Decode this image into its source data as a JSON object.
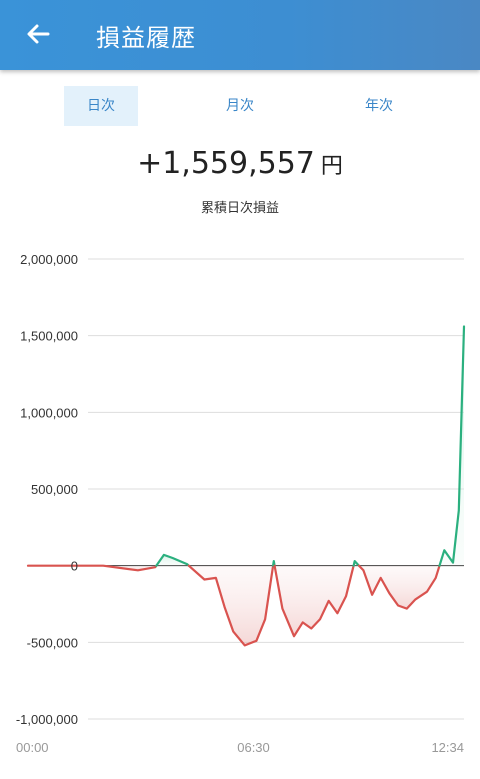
{
  "header": {
    "title": "損益履歴",
    "back_icon": "arrow-left-icon",
    "background": "#3d8ed2"
  },
  "tabs": [
    {
      "label": "日次",
      "active": true
    },
    {
      "label": "月次",
      "active": false
    },
    {
      "label": "年次",
      "active": false
    }
  ],
  "summary": {
    "value": "+1,559,557",
    "unit": "円",
    "caption": "累積日次損益"
  },
  "colors": {
    "positive": "#2bb07f",
    "negative": "#d9534f",
    "zero_line": "#333333",
    "grid": "#dddddd",
    "tab_active_bg": "#e3f1fb",
    "tab_text": "#3a86c8"
  },
  "chart_data": {
    "type": "line",
    "title": "",
    "xlabel": "",
    "ylabel": "",
    "ylim": [
      -1000000,
      2000000
    ],
    "y_ticks": [
      {
        "value": 2000000,
        "label": "2,000,000"
      },
      {
        "value": 1500000,
        "label": "1,500,000"
      },
      {
        "value": 1000000,
        "label": "1,000,000"
      },
      {
        "value": 500000,
        "label": "500,000"
      },
      {
        "value": 0,
        "label": "0"
      },
      {
        "value": -500000,
        "label": "-500,000"
      },
      {
        "value": -1000000,
        "label": "-1,000,000"
      }
    ],
    "x_ticks": [
      {
        "value": 0,
        "label": "00:00"
      },
      {
        "value": 390,
        "label": "06:30"
      },
      {
        "value": 754,
        "label": "12:34"
      }
    ],
    "xlim": [
      0,
      754
    ],
    "grid": true,
    "series": [
      {
        "x": [
          0,
          70,
          100,
          130,
          190,
          220,
          235,
          250,
          275,
          305,
          325,
          340,
          355,
          375,
          395,
          410,
          425,
          440,
          460,
          475,
          490,
          505,
          520,
          535,
          550,
          565,
          580,
          595,
          610,
          625,
          640,
          655,
          670,
          690,
          705,
          720,
          735,
          745,
          754
        ],
        "y": [
          0,
          0,
          0,
          0,
          -30000,
          -10000,
          70000,
          50000,
          10000,
          -90000,
          -80000,
          -270000,
          -430000,
          -520000,
          -490000,
          -350000,
          30000,
          -280000,
          -460000,
          -370000,
          -410000,
          -350000,
          -230000,
          -310000,
          -200000,
          30000,
          -30000,
          -190000,
          -80000,
          -180000,
          -260000,
          -280000,
          -220000,
          -170000,
          -80000,
          100000,
          20000,
          360000,
          1559557
        ]
      }
    ]
  }
}
